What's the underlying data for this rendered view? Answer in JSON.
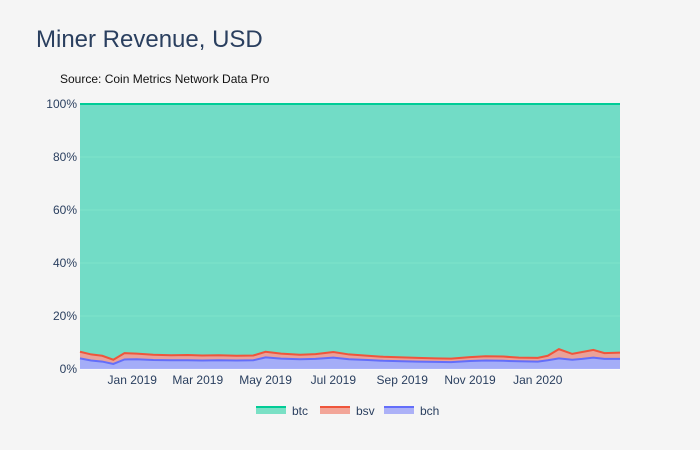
{
  "chart_data": {
    "type": "area",
    "stacking": "percent",
    "title": "Miner Revenue, USD",
    "subtitle": "Source: Coin Metrics Network Data Pro",
    "xlabel": "",
    "ylabel": "",
    "ylim": [
      0,
      100
    ],
    "y_ticks": [
      0,
      20,
      40,
      60,
      80,
      100
    ],
    "y_tick_labels": [
      "0%",
      "20%",
      "40%",
      "60%",
      "80%",
      "100%"
    ],
    "x_range": [
      "2018-11-15",
      "2020-03-15"
    ],
    "x_ticks": [
      "2019-01-01",
      "2019-03-01",
      "2019-05-01",
      "2019-07-01",
      "2019-09-01",
      "2019-11-01",
      "2020-01-01"
    ],
    "x_tick_labels": [
      "Jan 2019",
      "Mar 2019",
      "May 2019",
      "Jul 2019",
      "Sep 2019",
      "Nov 2019",
      "Jan 2020"
    ],
    "grid": true,
    "legend_position": "bottom-center",
    "dates": [
      "2018-11-15",
      "2018-11-25",
      "2018-12-05",
      "2018-12-15",
      "2018-12-25",
      "2019-01-05",
      "2019-01-20",
      "2019-02-05",
      "2019-02-20",
      "2019-03-05",
      "2019-03-20",
      "2019-04-05",
      "2019-04-20",
      "2019-05-01",
      "2019-05-15",
      "2019-06-01",
      "2019-06-15",
      "2019-07-01",
      "2019-07-15",
      "2019-08-01",
      "2019-08-15",
      "2019-09-01",
      "2019-09-15",
      "2019-10-01",
      "2019-10-15",
      "2019-11-01",
      "2019-11-15",
      "2019-12-01",
      "2019-12-15",
      "2020-01-01",
      "2020-01-10",
      "2020-01-20",
      "2020-02-01",
      "2020-02-10",
      "2020-02-20",
      "2020-03-01",
      "2020-03-15"
    ],
    "series": [
      {
        "name": "btc",
        "color": "#00cc96",
        "values": [
          93.5,
          94.5,
          95.0,
          96.5,
          94.0,
          94.2,
          94.6,
          94.8,
          94.7,
          94.9,
          94.8,
          95.0,
          94.9,
          93.5,
          94.2,
          94.6,
          94.4,
          93.6,
          94.5,
          95.0,
          95.4,
          95.6,
          95.8,
          96.0,
          96.1,
          95.5,
          95.2,
          95.3,
          95.7,
          95.8,
          95.0,
          92.5,
          94.3,
          93.6,
          92.8,
          94.0,
          93.8
        ]
      },
      {
        "name": "bsv",
        "color": "#ef553b",
        "values": [
          2.5,
          2.3,
          2.2,
          1.6,
          2.4,
          2.1,
          2.0,
          1.9,
          2.0,
          1.9,
          1.9,
          1.8,
          1.8,
          2.1,
          1.9,
          1.7,
          1.8,
          2.1,
          1.8,
          1.6,
          1.5,
          1.5,
          1.4,
          1.3,
          1.3,
          1.5,
          1.6,
          1.6,
          1.4,
          1.4,
          1.7,
          3.5,
          2.2,
          2.6,
          2.9,
          2.2,
          2.4
        ]
      },
      {
        "name": "bch",
        "color": "#636efa",
        "values": [
          4.0,
          3.2,
          2.8,
          1.9,
          3.6,
          3.7,
          3.4,
          3.3,
          3.3,
          3.2,
          3.3,
          3.2,
          3.3,
          4.4,
          3.9,
          3.7,
          3.8,
          4.3,
          3.7,
          3.4,
          3.1,
          2.9,
          2.8,
          2.7,
          2.6,
          3.0,
          3.2,
          3.1,
          2.9,
          2.8,
          3.3,
          4.0,
          3.5,
          3.8,
          4.3,
          3.8,
          3.8
        ]
      }
    ]
  }
}
